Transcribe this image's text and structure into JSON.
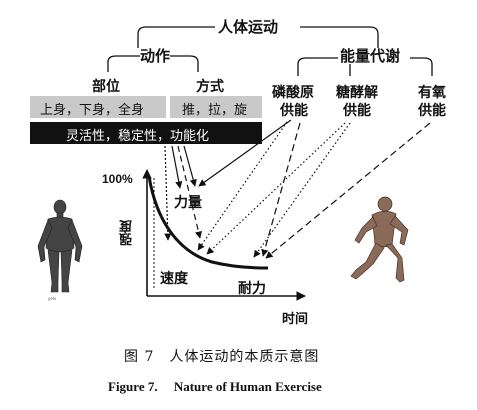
{
  "diagram": {
    "root": "人体运动",
    "branch_action": "动作",
    "branch_energy": "能量代谢",
    "action_part": "部位",
    "action_mode": "方式",
    "part_values": "上身，下身，全身",
    "mode_values": "推，拉，旋",
    "qualities": "灵活性，稳定性，功能化",
    "energy_phosphagen": [
      "磷酸原",
      "供能"
    ],
    "energy_glycolysis": [
      "糖酵解",
      "供能"
    ],
    "energy_aerobic": [
      "有氧",
      "供能"
    ]
  },
  "chart": {
    "y_max_label": "100%",
    "y_axis_label": "强度",
    "x_axis_label": "时间",
    "curve_strength": "力量",
    "curve_speed": "速度",
    "curve_endurance": "耐力"
  },
  "figures": {
    "left_icon": "standing-anatomy-figure-icon",
    "right_icon": "running-anatomy-figure-icon"
  },
  "caption": {
    "cn": "图 7　人体运动的本质示意图",
    "en": "Figure 7.　 Nature of Human Exercise"
  }
}
